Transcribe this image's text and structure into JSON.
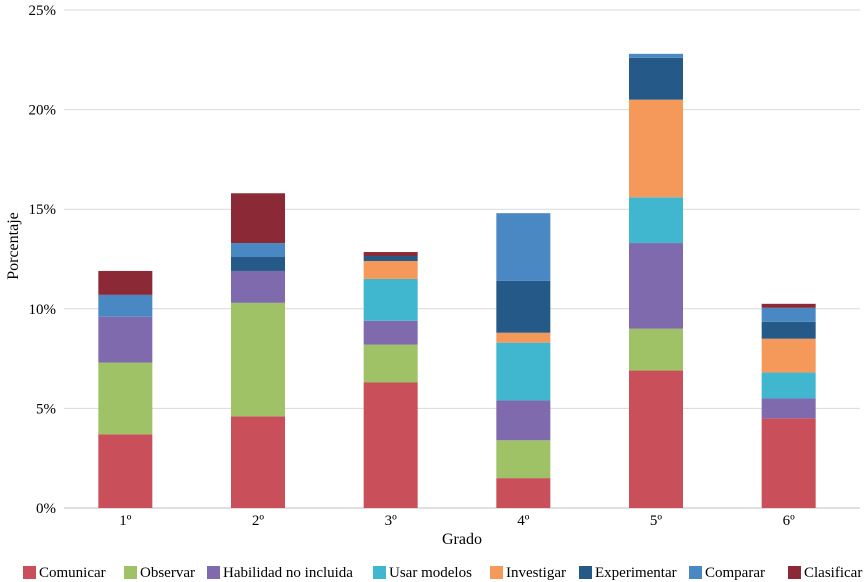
{
  "chart_data": {
    "type": "bar",
    "stacked": true,
    "title": "",
    "xlabel": "Grado",
    "ylabel": "Porcentaje",
    "ylim": [
      0,
      25
    ],
    "yticks": [
      0,
      5,
      10,
      15,
      20,
      25
    ],
    "ytick_labels": [
      "0%",
      "5%",
      "10%",
      "15%",
      "20%",
      "25%"
    ],
    "grid": true,
    "legend_position": "bottom",
    "categories": [
      "1º",
      "2º",
      "3º",
      "4º",
      "5º",
      "6º"
    ],
    "series": [
      {
        "name": "Comunicar",
        "color": "#c9505b",
        "values": [
          3.7,
          4.6,
          6.3,
          1.5,
          6.9,
          4.5
        ]
      },
      {
        "name": "Observar",
        "color": "#9fc267",
        "values": [
          3.6,
          5.7,
          1.9,
          1.9,
          2.1,
          0.0
        ]
      },
      {
        "name": "Habilidad no incluida",
        "color": "#7f6aad",
        "values": [
          2.3,
          1.6,
          1.2,
          2.0,
          4.3,
          1.0
        ]
      },
      {
        "name": "Usar modelos",
        "color": "#41b6cf",
        "values": [
          0.0,
          0.0,
          2.1,
          2.9,
          2.3,
          1.3
        ]
      },
      {
        "name": "Investigar",
        "color": "#f4995a",
        "values": [
          0.0,
          0.0,
          0.9,
          0.5,
          4.9,
          1.7
        ]
      },
      {
        "name": "Experimentar",
        "color": "#255987",
        "values": [
          0.0,
          0.7,
          0.25,
          2.6,
          2.1,
          0.85
        ]
      },
      {
        "name": "Comparar",
        "color": "#4a88c4",
        "values": [
          1.1,
          0.7,
          0.0,
          3.4,
          0.2,
          0.7
        ]
      },
      {
        "name": "Clasificar",
        "color": "#8b2a36",
        "values": [
          1.2,
          2.5,
          0.2,
          0.0,
          0.0,
          0.2
        ]
      }
    ]
  }
}
